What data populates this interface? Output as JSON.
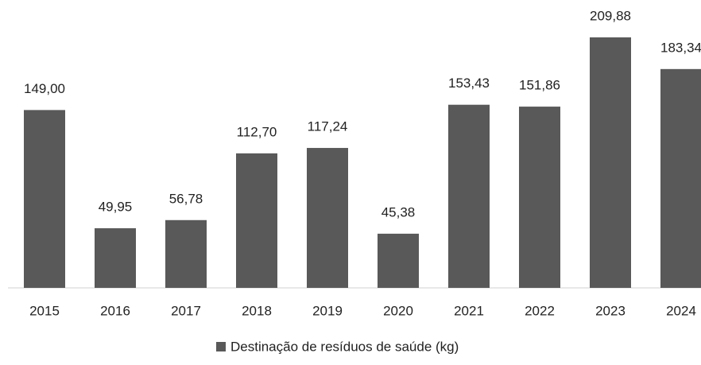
{
  "chart_data": {
    "type": "bar",
    "categories": [
      "2015",
      "2016",
      "2017",
      "2018",
      "2019",
      "2020",
      "2021",
      "2022",
      "2023",
      "2024"
    ],
    "series": [
      {
        "name": "Destinação de resíduos de saúde (kg)",
        "color": "#595959",
        "values": [
          149.0,
          49.95,
          56.78,
          112.7,
          117.24,
          45.38,
          153.43,
          151.86,
          209.88,
          183.34
        ],
        "value_labels": [
          "149,00",
          "49,95",
          "56,78",
          "112,70",
          "117,24",
          "45,38",
          "153,43",
          "151,86",
          "209,88",
          "183,34"
        ]
      }
    ],
    "legend": "bottom"
  }
}
